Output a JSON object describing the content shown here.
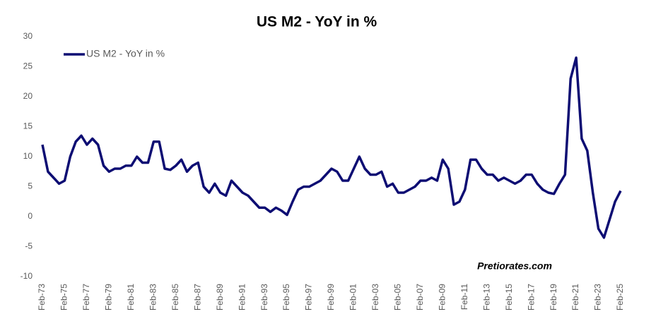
{
  "chart_data": {
    "type": "line",
    "title": "US M2 - YoY in %",
    "categories": [
      "Feb-73",
      null,
      null,
      null,
      "Feb-75",
      null,
      null,
      null,
      "Feb-77",
      null,
      null,
      null,
      "Feb-79",
      null,
      null,
      null,
      "Feb-81",
      null,
      null,
      null,
      "Feb-83",
      null,
      null,
      null,
      "Feb-85",
      null,
      null,
      null,
      "Feb-87",
      null,
      null,
      null,
      "Feb-89",
      null,
      null,
      null,
      "Feb-91",
      null,
      null,
      null,
      "Feb-93",
      null,
      null,
      null,
      "Feb-95",
      null,
      null,
      null,
      "Feb-97",
      null,
      null,
      null,
      "Feb-99",
      null,
      null,
      null,
      "Feb-01",
      null,
      null,
      null,
      "Feb-03",
      null,
      null,
      null,
      "Feb-05",
      null,
      null,
      null,
      "Feb-07",
      null,
      null,
      null,
      "Feb-09",
      null,
      null,
      null,
      "Feb-11",
      null,
      null,
      null,
      "Feb-13",
      null,
      null,
      null,
      "Feb-15",
      null,
      null,
      null,
      "Feb-17",
      null,
      null,
      null,
      "Feb-19",
      null,
      null,
      null,
      "Feb-21",
      null,
      null,
      null,
      "Feb-23",
      null,
      null,
      null,
      "Feb-25"
    ],
    "series": [
      {
        "name": "US M2 - YoY in %",
        "color": "#0d0d73",
        "values": [
          12,
          7.5,
          6.5,
          5.5,
          6,
          10,
          12.5,
          13.5,
          12,
          13,
          12,
          8.5,
          7.5,
          8,
          8,
          8.5,
          8.5,
          10,
          9,
          9,
          12.5,
          12.5,
          8,
          7.8,
          8.5,
          9.5,
          7.5,
          8.5,
          9,
          5,
          4,
          5.5,
          4,
          3.5,
          6,
          5,
          4,
          3.5,
          2.5,
          1.5,
          1.5,
          0.8,
          1.5,
          1,
          0.3,
          2.5,
          4.5,
          5,
          5,
          5.5,
          6,
          7,
          8,
          7.5,
          6,
          6,
          8,
          10,
          8,
          7,
          7,
          7.5,
          5,
          5.5,
          4,
          4,
          4.5,
          5,
          6,
          6,
          6.5,
          6,
          9.5,
          8,
          2,
          2.5,
          4.5,
          9.5,
          9.5,
          8,
          7,
          7,
          6,
          6.5,
          6,
          5.5,
          6,
          7,
          7,
          5.5,
          4.5,
          4,
          3.8,
          5.5,
          7,
          23,
          26.5,
          13,
          11,
          4,
          -2,
          -3.5,
          -0.5,
          2.5,
          4.3
        ]
      }
    ],
    "ylim": [
      -10,
      30
    ],
    "yticks": [
      -10,
      -5,
      0,
      5,
      10,
      15,
      20,
      25,
      30
    ],
    "legend": "top-left",
    "annotation": "Pretiorates.com"
  }
}
